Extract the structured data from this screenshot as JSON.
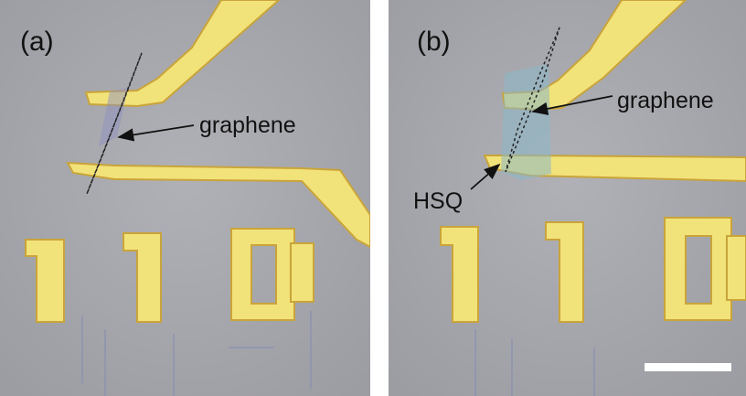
{
  "panels": [
    {
      "label": "(a)",
      "annotations": [
        "graphene"
      ]
    },
    {
      "label": "(b)",
      "annotations": [
        "graphene",
        "HSQ"
      ]
    }
  ]
}
